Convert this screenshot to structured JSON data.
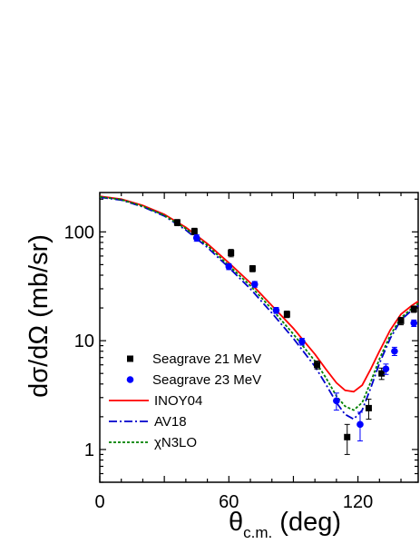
{
  "chart_data": {
    "type": "line",
    "xlabel": "θc.m. (deg)",
    "ylabel": "dσ/dΩ (mb/sr)",
    "xlabel_parts": {
      "theta": "θ",
      "sub": "c.m.",
      "unit": " (deg)"
    },
    "xlim": [
      0,
      148
    ],
    "ylim": [
      0.5,
      230
    ],
    "y_scale": "log",
    "grid": false,
    "legend_position": "lower-left",
    "x_ticks": [
      "0",
      "60",
      "120"
    ],
    "y_ticks": [
      "1",
      "10",
      "100"
    ],
    "colors": {
      "INOY04": "#ff0000",
      "AV18": "#0000cc",
      "chiN3LO": "#008000",
      "Seagrave 21 MeV": "#000000",
      "Seagrave 23 MeV": "#0000ff"
    },
    "series": [
      {
        "name": "Seagrave 21 MeV",
        "kind": "points",
        "marker": "square",
        "points": [
          {
            "x": 36,
            "y": 122,
            "err": 8
          },
          {
            "x": 44,
            "y": 101,
            "err": 7
          },
          {
            "x": 61,
            "y": 64,
            "err": 5
          },
          {
            "x": 71,
            "y": 46,
            "err": 3
          },
          {
            "x": 87,
            "y": 17.5,
            "err": 1.2
          },
          {
            "x": 101,
            "y": 6.0,
            "err": 0.5
          },
          {
            "x": 115,
            "y": 1.3,
            "err": 0.4
          },
          {
            "x": 125,
            "y": 2.4,
            "err": 0.5
          },
          {
            "x": 131,
            "y": 5.0,
            "err": 0.6
          },
          {
            "x": 140,
            "y": 15.2,
            "err": 1.2
          },
          {
            "x": 146,
            "y": 19.5,
            "err": 1.3
          }
        ]
      },
      {
        "name": "Seagrave 23 MeV",
        "kind": "points",
        "marker": "circle",
        "points": [
          {
            "x": 45,
            "y": 88,
            "err": 6
          },
          {
            "x": 60,
            "y": 48,
            "err": 3
          },
          {
            "x": 72,
            "y": 33,
            "err": 2
          },
          {
            "x": 82,
            "y": 19,
            "err": 1.2
          },
          {
            "x": 94,
            "y": 9.8,
            "err": 0.7
          },
          {
            "x": 110,
            "y": 2.8,
            "err": 0.5
          },
          {
            "x": 121,
            "y": 1.7,
            "err": 0.5
          },
          {
            "x": 133,
            "y": 5.5,
            "err": 0.6
          },
          {
            "x": 137,
            "y": 8.0,
            "err": 0.7
          },
          {
            "x": 146,
            "y": 14.5,
            "err": 1.0
          }
        ]
      },
      {
        "name": "INOY04",
        "kind": "line",
        "dash": "solid",
        "x": [
          0,
          10,
          20,
          30,
          40,
          50,
          60,
          70,
          80,
          90,
          100,
          105,
          110,
          114,
          118,
          122,
          126,
          130,
          135,
          140,
          145,
          148
        ],
        "y": [
          212,
          200,
          175,
          145,
          110,
          78,
          52,
          34,
          21,
          13,
          7.5,
          5.5,
          4.1,
          3.5,
          3.4,
          3.9,
          5.5,
          8.0,
          12.5,
          17.5,
          21,
          23
        ]
      },
      {
        "name": "AV18",
        "kind": "line",
        "dash": "dashdot",
        "x": [
          0,
          10,
          20,
          30,
          40,
          50,
          60,
          70,
          80,
          90,
          100,
          105,
          110,
          114,
          118,
          122,
          126,
          130,
          135,
          140,
          145,
          148
        ],
        "y": [
          208,
          196,
          170,
          140,
          104,
          72,
          47,
          30,
          18,
          10.5,
          5.8,
          4.0,
          2.7,
          2.1,
          1.9,
          2.3,
          3.7,
          6.2,
          10.5,
          15.5,
          19,
          21
        ]
      },
      {
        "name": "χN3LO",
        "kind": "line",
        "dash": "dotted",
        "x": [
          0,
          10,
          20,
          30,
          40,
          50,
          60,
          70,
          80,
          90,
          100,
          105,
          110,
          114,
          118,
          122,
          126,
          130,
          135,
          140,
          145,
          148
        ],
        "y": [
          210,
          198,
          172,
          142,
          107,
          75,
          49,
          32,
          19.5,
          11.5,
          6.5,
          4.6,
          3.1,
          2.5,
          2.3,
          2.7,
          4.2,
          6.8,
          11.2,
          16.2,
          19.8,
          22
        ]
      }
    ]
  }
}
